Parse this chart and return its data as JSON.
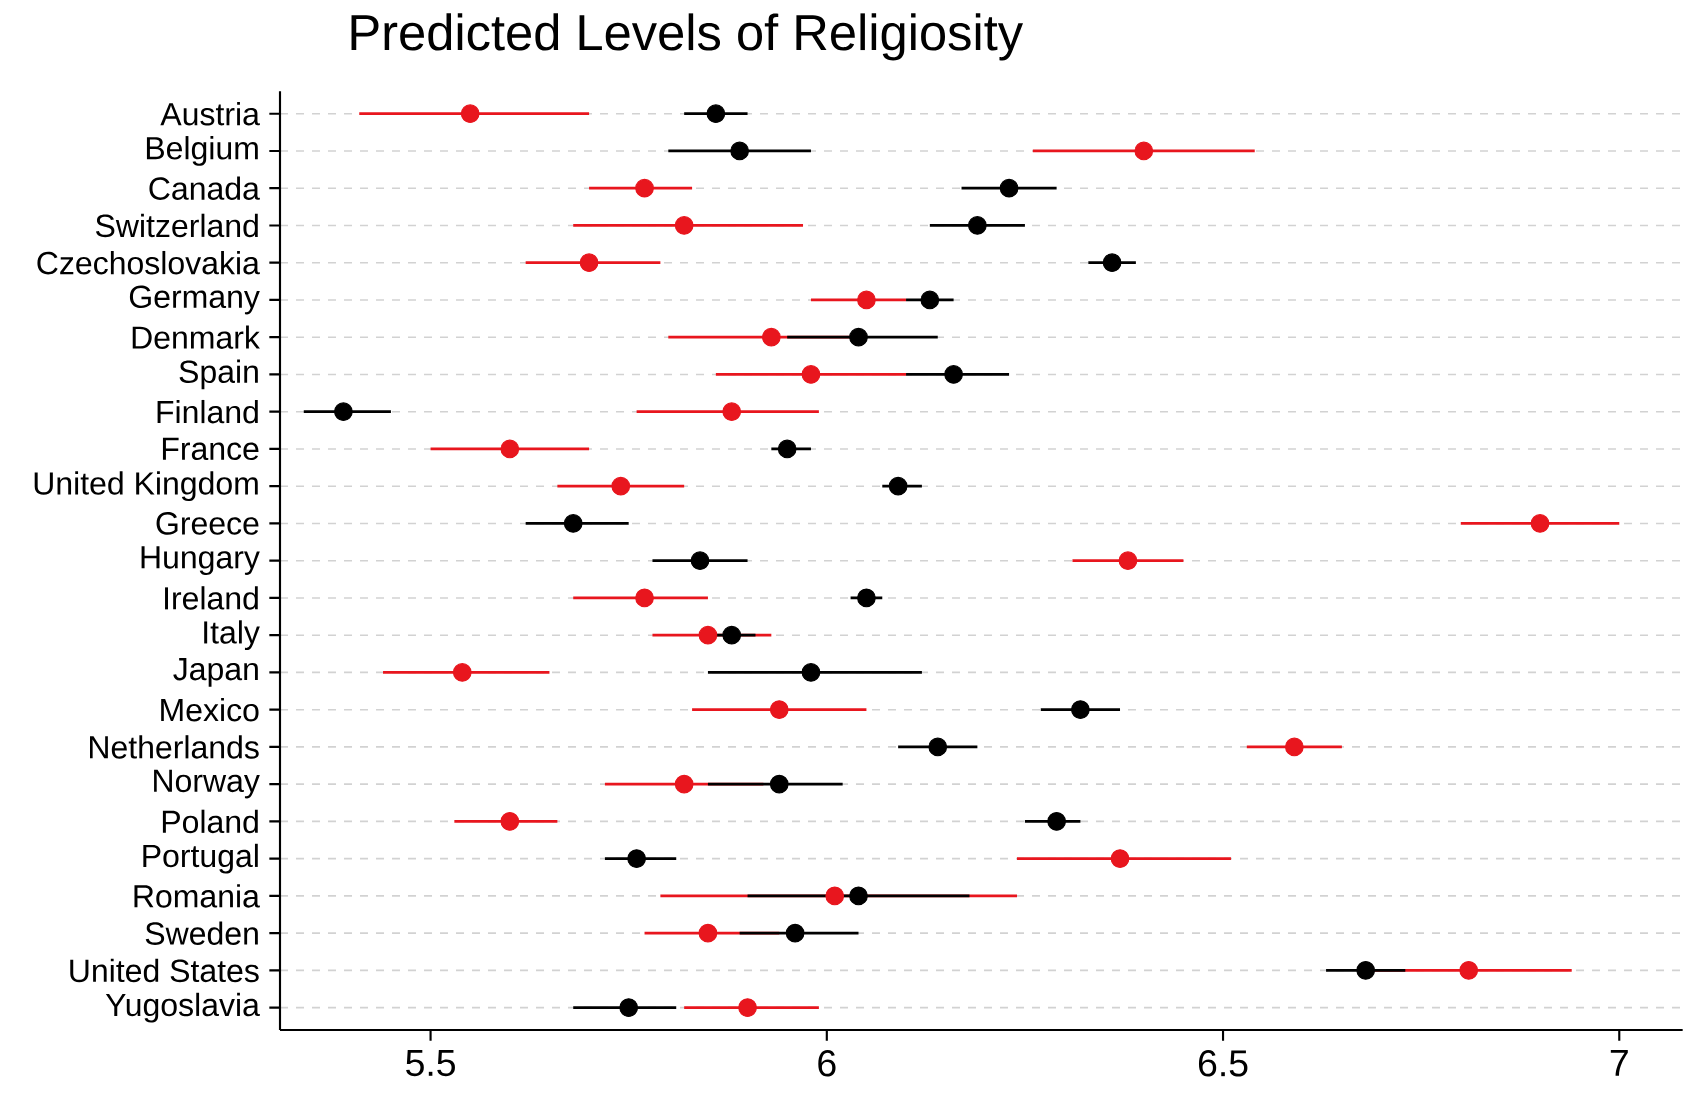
{
  "chart_data": {
    "type": "scatter",
    "orientation": "horizontal",
    "title": "Predicted Levels of Religiosity",
    "categories": [
      "Austria",
      "Belgium",
      "Canada",
      "Switzerland",
      "Czechoslovakia",
      "Germany",
      "Denmark",
      "Spain",
      "Finland",
      "France",
      "United Kingdom",
      "Greece",
      "Hungary",
      "Ireland",
      "Italy",
      "Japan",
      "Mexico",
      "Netherlands",
      "Norway",
      "Poland",
      "Portugal",
      "Romania",
      "Sweden",
      "United States",
      "Yugoslavia"
    ],
    "series": [
      {
        "color": "#000000",
        "values": [
          5.86,
          5.89,
          6.23,
          6.19,
          6.36,
          6.13,
          6.04,
          6.16,
          5.39,
          5.95,
          6.09,
          5.68,
          5.84,
          6.05,
          5.88,
          5.98,
          6.32,
          6.14,
          5.94,
          6.29,
          5.76,
          6.04,
          5.96,
          6.68,
          5.75
        ],
        "errors": [
          [
            5.82,
            5.9
          ],
          [
            5.8,
            5.98
          ],
          [
            6.17,
            6.29
          ],
          [
            6.13,
            6.25
          ],
          [
            6.33,
            6.39
          ],
          [
            6.1,
            6.16
          ],
          [
            5.95,
            6.14
          ],
          [
            6.1,
            6.23
          ],
          [
            5.34,
            5.45
          ],
          [
            5.93,
            5.98
          ],
          [
            6.07,
            6.12
          ],
          [
            5.62,
            5.75
          ],
          [
            5.78,
            5.9
          ],
          [
            6.03,
            6.07
          ],
          [
            5.86,
            5.91
          ],
          [
            5.85,
            6.12
          ],
          [
            6.27,
            6.37
          ],
          [
            6.09,
            6.19
          ],
          [
            5.85,
            6.02
          ],
          [
            6.25,
            6.32
          ],
          [
            5.72,
            5.81
          ],
          [
            5.9,
            6.18
          ],
          [
            5.89,
            6.04
          ],
          [
            6.63,
            6.73
          ],
          [
            5.68,
            5.81
          ]
        ]
      },
      {
        "color": "#e8161e",
        "values": [
          5.55,
          6.4,
          5.77,
          5.82,
          5.7,
          6.05,
          5.93,
          5.98,
          5.88,
          5.6,
          5.74,
          6.9,
          6.38,
          5.77,
          5.85,
          5.54,
          5.94,
          6.59,
          5.82,
          5.6,
          6.37,
          6.01,
          5.85,
          6.81,
          5.9
        ],
        "errors": [
          [
            5.41,
            5.7
          ],
          [
            6.26,
            6.54
          ],
          [
            5.7,
            5.83
          ],
          [
            5.68,
            5.97
          ],
          [
            5.62,
            5.79
          ],
          [
            5.98,
            6.1
          ],
          [
            5.8,
            6.05
          ],
          [
            5.86,
            6.1
          ],
          [
            5.76,
            5.99
          ],
          [
            5.5,
            5.7
          ],
          [
            5.66,
            5.82
          ],
          [
            6.8,
            7.0
          ],
          [
            6.31,
            6.45
          ],
          [
            5.68,
            5.85
          ],
          [
            5.78,
            5.93
          ],
          [
            5.44,
            5.65
          ],
          [
            5.83,
            6.05
          ],
          [
            6.53,
            6.65
          ],
          [
            5.72,
            5.92
          ],
          [
            5.53,
            5.66
          ],
          [
            6.24,
            6.51
          ],
          [
            5.79,
            6.24
          ],
          [
            5.77,
            5.94
          ],
          [
            6.69,
            6.94
          ],
          [
            5.82,
            5.99
          ]
        ]
      }
    ],
    "xlim": [
      5.31,
      7.08
    ],
    "xticks": [
      5.5,
      6,
      6.5,
      7
    ],
    "grid": "y",
    "marker": "circle"
  }
}
